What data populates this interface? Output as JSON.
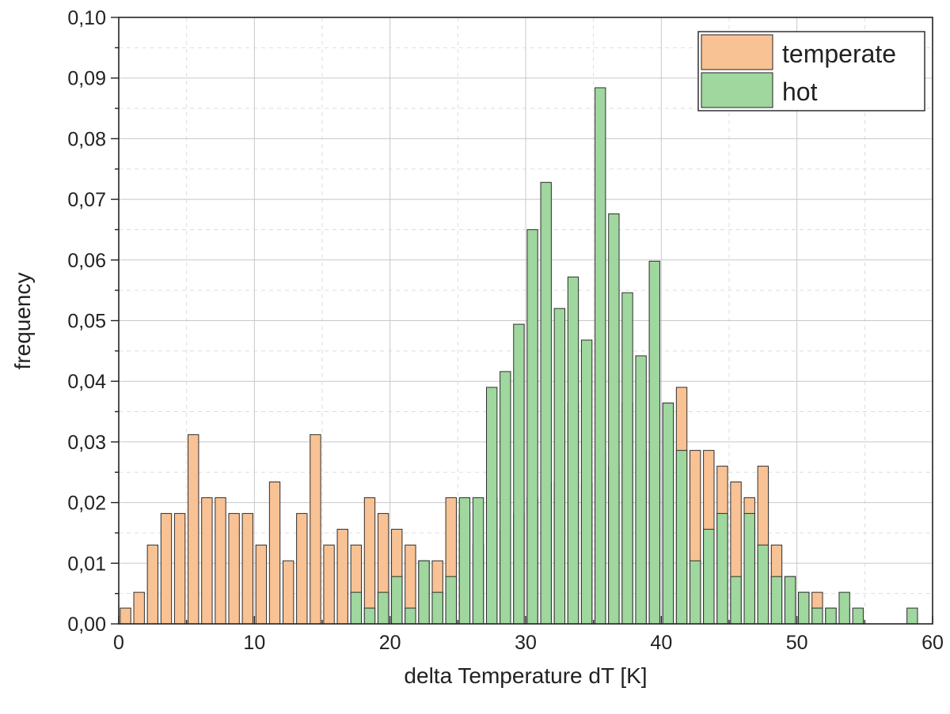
{
  "chart_data": {
    "type": "bar",
    "title": "",
    "xlabel": "delta Temperature dT [K]",
    "ylabel": "frequency",
    "xlim": [
      0,
      60
    ],
    "ylim": [
      0,
      0.1
    ],
    "x_ticks": [
      "0",
      "10",
      "20",
      "30",
      "40",
      "50",
      "60"
    ],
    "y_ticks": [
      "0,00",
      "0,01",
      "0,02",
      "0,03",
      "0,04",
      "0,05",
      "0,06",
      "0,07",
      "0,08",
      "0,09",
      "0,10"
    ],
    "grid": true,
    "legend_position": "top-right",
    "bin_width": 1,
    "bins": [
      0,
      1,
      2,
      3,
      4,
      5,
      6,
      7,
      8,
      9,
      10,
      11,
      12,
      13,
      14,
      15,
      16,
      17,
      18,
      19,
      20,
      21,
      22,
      23,
      24,
      25,
      26,
      27,
      28,
      29,
      30,
      31,
      32,
      33,
      34,
      35,
      36,
      37,
      38,
      39,
      40,
      41,
      42,
      43,
      44,
      45,
      46,
      47,
      48,
      49,
      50,
      51,
      52,
      53,
      54,
      55,
      56,
      57,
      58
    ],
    "series": [
      {
        "name": "temperate",
        "color": "#F9C294",
        "values": [
          0.0026,
          0.0052,
          0.013,
          0.0182,
          0.0182,
          0.0312,
          0.0208,
          0.0208,
          0.0182,
          0.0182,
          0.013,
          0.0234,
          0.0104,
          0.0182,
          0.0312,
          0.013,
          0.0156,
          0.013,
          0.0208,
          0.0182,
          0.0156,
          0.013,
          0.0104,
          0.0104,
          0.0208,
          0.0182,
          0.013,
          0.0208,
          0.0156,
          0.0182,
          0.0208,
          0.0234,
          0.0234,
          0.0364,
          0.0234,
          0.0286,
          0.026,
          0.0364,
          0.0286,
          0.0286,
          0.0364,
          0.039,
          0.0286,
          0.0286,
          0.026,
          0.0234,
          0.0208,
          0.026,
          0.013,
          0.0078,
          0.0052,
          0.0052,
          0.0026,
          0.0026,
          0,
          0,
          0,
          0,
          0
        ]
      },
      {
        "name": "hot",
        "color": "#9FD79F",
        "values": [
          0,
          0,
          0,
          0,
          0,
          0,
          0,
          0,
          0,
          0,
          0,
          0,
          0,
          0,
          0,
          0,
          0,
          0.0052,
          0.0026,
          0.0052,
          0.0078,
          0.0026,
          0.0104,
          0.0052,
          0.0078,
          0.0208,
          0.0208,
          0.039,
          0.0416,
          0.0494,
          0.065,
          0.0728,
          0.052,
          0.0572,
          0.0468,
          0.0884,
          0.0676,
          0.0546,
          0.0442,
          0.0598,
          0.0364,
          0.0286,
          0.0104,
          0.0156,
          0.0182,
          0.0078,
          0.0182,
          0.013,
          0.0078,
          0.0078,
          0.0052,
          0.0026,
          0.0026,
          0.0052,
          0.0026,
          0,
          0,
          0,
          0.0026
        ]
      }
    ]
  }
}
